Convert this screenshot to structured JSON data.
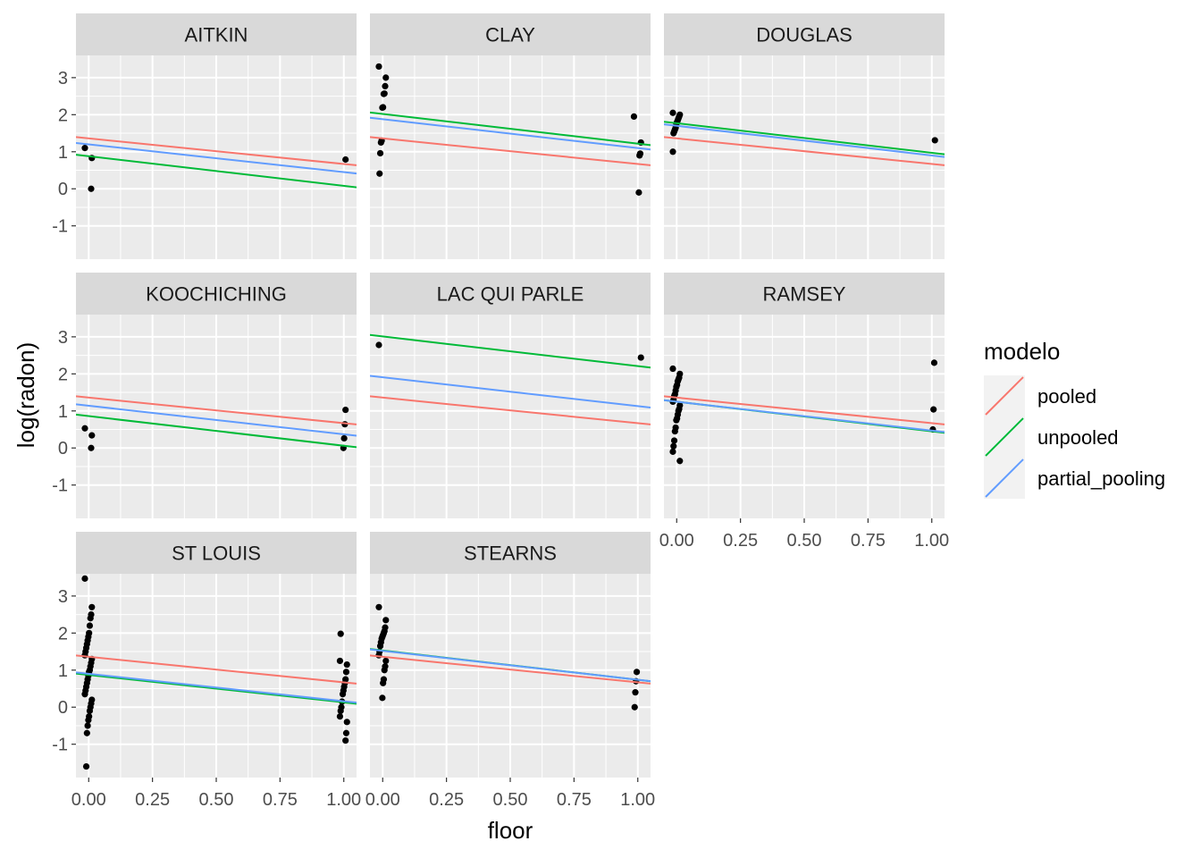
{
  "chart_data": {
    "type": "scatter",
    "layout": "facet_wrap",
    "xlabel": "floor",
    "ylabel": "log(radon)",
    "xlim": [
      -0.05,
      1.05
    ],
    "ylim": [
      -1.9,
      3.6
    ],
    "x_ticks": [
      0.0,
      0.25,
      0.5,
      0.75,
      1.0
    ],
    "x_tick_labels": [
      "0.00",
      "0.25",
      "0.50",
      "0.75",
      "1.00"
    ],
    "y_ticks": [
      -1,
      0,
      1,
      2,
      3
    ],
    "y_tick_labels": [
      "-1",
      "0",
      "1",
      "2",
      "3"
    ],
    "grid": true,
    "legend": {
      "title": "modelo",
      "position": "right",
      "entries": [
        {
          "name": "pooled",
          "color": "#F8766D"
        },
        {
          "name": "unpooled",
          "color": "#00BA38"
        },
        {
          "name": "partial_pooling",
          "color": "#619CFF"
        }
      ]
    },
    "point_color": "#000000",
    "panel_background": "#EBEBEB",
    "strip_background": "#D9D9D9",
    "panels": [
      {
        "county": "AITKIN",
        "lines": {
          "pooled": [
            1.36,
            0.67
          ],
          "unpooled": [
            0.88,
            0.08
          ],
          "partial_pooling": [
            1.2,
            0.45
          ]
        },
        "points": [
          [
            0,
            1.1
          ],
          [
            0,
            0.83
          ],
          [
            0,
            0.0
          ],
          [
            1,
            0.79
          ]
        ]
      },
      {
        "county": "CLAY",
        "lines": {
          "pooled": [
            1.36,
            0.67
          ],
          "unpooled": [
            2.02,
            1.22
          ],
          "partial_pooling": [
            1.88,
            1.1
          ]
        },
        "points": [
          [
            0,
            3.3
          ],
          [
            0,
            3.0
          ],
          [
            0,
            2.77
          ],
          [
            0,
            2.57
          ],
          [
            0,
            2.56
          ],
          [
            0,
            2.2
          ],
          [
            0,
            2.19
          ],
          [
            0,
            1.3
          ],
          [
            0,
            1.25
          ],
          [
            0,
            0.96
          ],
          [
            0,
            0.41
          ],
          [
            1,
            1.95
          ],
          [
            1,
            1.25
          ],
          [
            1,
            0.95
          ],
          [
            1,
            0.9
          ],
          [
            1,
            -0.1
          ]
        ]
      },
      {
        "county": "DOUGLAS",
        "lines": {
          "pooled": [
            1.36,
            0.67
          ],
          "unpooled": [
            1.77,
            0.97
          ],
          "partial_pooling": [
            1.7,
            0.9
          ]
        },
        "points": [
          [
            0,
            2.05
          ],
          [
            0,
            2.0
          ],
          [
            0,
            1.95
          ],
          [
            0,
            1.9
          ],
          [
            0,
            1.85
          ],
          [
            0,
            1.8
          ],
          [
            0,
            1.75
          ],
          [
            0,
            1.65
          ],
          [
            0,
            1.6
          ],
          [
            0,
            1.55
          ],
          [
            0,
            1.5
          ],
          [
            0,
            1.0
          ],
          [
            1,
            1.31
          ]
        ]
      },
      {
        "county": "KOOCHICHING",
        "lines": {
          "pooled": [
            1.36,
            0.67
          ],
          "unpooled": [
            0.86,
            0.06
          ],
          "partial_pooling": [
            1.14,
            0.37
          ]
        },
        "points": [
          [
            0,
            0.53
          ],
          [
            0,
            0.34
          ],
          [
            0,
            0.0
          ],
          [
            1,
            1.03
          ],
          [
            1,
            0.64
          ],
          [
            1,
            0.26
          ],
          [
            1,
            0.0
          ]
        ]
      },
      {
        "county": "LAC QUI PARLE",
        "lines": {
          "pooled": [
            1.36,
            0.67
          ],
          "unpooled": [
            3.01,
            2.21
          ],
          "partial_pooling": [
            1.91,
            1.13
          ]
        },
        "points": [
          [
            0,
            2.78
          ],
          [
            1,
            2.44
          ]
        ]
      },
      {
        "county": "RAMSEY",
        "lines": {
          "pooled": [
            1.36,
            0.67
          ],
          "unpooled": [
            1.25,
            0.45
          ],
          "partial_pooling": [
            1.25,
            0.47
          ]
        },
        "points": [
          [
            0,
            2.14
          ],
          [
            0,
            2.0
          ],
          [
            0,
            1.9
          ],
          [
            0,
            1.85
          ],
          [
            0,
            1.8
          ],
          [
            0,
            1.7
          ],
          [
            0,
            1.65
          ],
          [
            0,
            1.55
          ],
          [
            0,
            1.45
          ],
          [
            0,
            1.4
          ],
          [
            0,
            1.3
          ],
          [
            0,
            1.25
          ],
          [
            0,
            1.15
          ],
          [
            0,
            1.05
          ],
          [
            0,
            1.0
          ],
          [
            0,
            0.9
          ],
          [
            0,
            0.8
          ],
          [
            0,
            0.75
          ],
          [
            0,
            0.55
          ],
          [
            0,
            0.45
          ],
          [
            0,
            0.2
          ],
          [
            0,
            0.05
          ],
          [
            0,
            -0.1
          ],
          [
            0,
            -0.35
          ],
          [
            1,
            2.3
          ],
          [
            1,
            1.04
          ],
          [
            1,
            0.5
          ]
        ]
      },
      {
        "county": "ST LOUIS",
        "lines": {
          "pooled": [
            1.36,
            0.67
          ],
          "unpooled": [
            0.87,
            0.13
          ],
          "partial_pooling": [
            0.9,
            0.16
          ]
        },
        "points": [
          [
            0,
            3.47
          ],
          [
            0,
            2.7
          ],
          [
            0,
            2.5
          ],
          [
            0,
            2.4
          ],
          [
            0,
            2.2
          ],
          [
            0,
            2.0
          ],
          [
            0,
            1.9
          ],
          [
            0,
            1.8
          ],
          [
            0,
            1.7
          ],
          [
            0,
            1.6
          ],
          [
            0,
            1.5
          ],
          [
            0,
            1.4
          ],
          [
            0,
            1.3
          ],
          [
            0,
            1.2
          ],
          [
            0,
            1.1
          ],
          [
            0,
            1.0
          ],
          [
            0,
            0.95
          ],
          [
            0,
            0.85
          ],
          [
            0,
            0.75
          ],
          [
            0,
            0.65
          ],
          [
            0,
            0.55
          ],
          [
            0,
            0.45
          ],
          [
            0,
            0.35
          ],
          [
            0,
            0.2
          ],
          [
            0,
            0.1
          ],
          [
            0,
            0.0
          ],
          [
            0,
            -0.1
          ],
          [
            0,
            -0.25
          ],
          [
            0,
            -0.35
          ],
          [
            0,
            -0.5
          ],
          [
            0,
            -0.7
          ],
          [
            0,
            -1.6
          ],
          [
            1,
            1.98
          ],
          [
            1,
            1.25
          ],
          [
            1,
            1.15
          ],
          [
            1,
            0.95
          ],
          [
            1,
            0.75
          ],
          [
            1,
            0.65
          ],
          [
            1,
            0.55
          ],
          [
            1,
            0.45
          ],
          [
            1,
            0.35
          ],
          [
            1,
            0.15
          ],
          [
            1,
            0.0
          ],
          [
            1,
            -0.1
          ],
          [
            1,
            -0.25
          ],
          [
            1,
            -0.4
          ],
          [
            1,
            -0.7
          ],
          [
            1,
            -0.9
          ]
        ]
      },
      {
        "county": "STEARNS",
        "lines": {
          "pooled": [
            1.36,
            0.67
          ],
          "unpooled": [
            1.53,
            0.74
          ],
          "partial_pooling": [
            1.52,
            0.74
          ]
        },
        "points": [
          [
            0,
            2.7
          ],
          [
            0,
            2.35
          ],
          [
            0,
            2.15
          ],
          [
            0,
            2.05
          ],
          [
            0,
            2.0
          ],
          [
            0,
            1.95
          ],
          [
            0,
            1.9
          ],
          [
            0,
            1.85
          ],
          [
            0,
            1.75
          ],
          [
            0,
            1.65
          ],
          [
            0,
            1.5
          ],
          [
            0,
            1.4
          ],
          [
            0,
            1.25
          ],
          [
            0,
            1.1
          ],
          [
            0,
            1.0
          ],
          [
            0,
            0.75
          ],
          [
            0,
            0.65
          ],
          [
            0,
            0.25
          ],
          [
            1,
            0.95
          ],
          [
            1,
            0.7
          ],
          [
            1,
            0.4
          ],
          [
            1,
            0.0
          ]
        ]
      }
    ]
  }
}
